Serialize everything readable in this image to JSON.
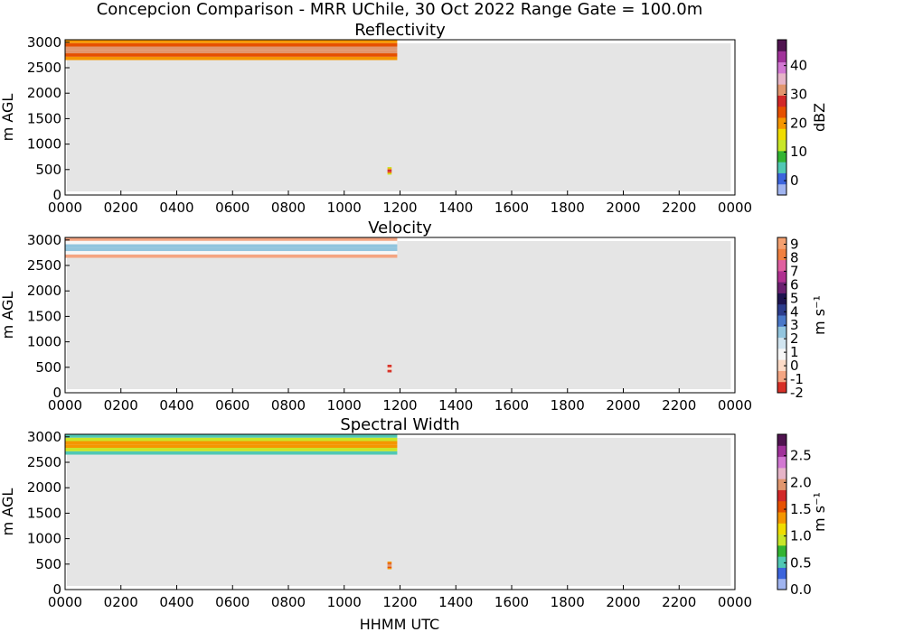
{
  "figure_title": "Concepcion Comparison - MRR UChile, 30 Oct 2022 Range Gate = 100.0m",
  "xlabel": "HHMM UTC",
  "colors": {
    "background": "#e5e5e5",
    "frame": "#000000"
  },
  "chart_data": [
    {
      "type": "heatmap",
      "title": "Reflectivity",
      "ylabel": "m AGL",
      "xlabel": "",
      "x_tick_labels": [
        "0000",
        "0200",
        "0400",
        "0600",
        "0800",
        "1000",
        "1200",
        "1400",
        "1600",
        "1800",
        "2000",
        "2200",
        "0000"
      ],
      "y_ticks": [
        0,
        500,
        1000,
        1500,
        2000,
        2500,
        3000
      ],
      "ylim": [
        0,
        3050
      ],
      "xlim_hours": [
        0,
        24
      ],
      "colorbar": {
        "label": "dBZ",
        "range": [
          -5,
          49
        ],
        "ticks": [
          "0",
          "10",
          "20",
          "30",
          "40"
        ],
        "tick_values": [
          0,
          10,
          20,
          30,
          40
        ],
        "colors": [
          "#a0b4f0",
          "#3c64dc",
          "#50c8b4",
          "#32b432",
          "#c8e628",
          "#f0dc00",
          "#f59600",
          "#e65000",
          "#d22828",
          "#e1966e",
          "#e6b4c8",
          "#d278d2",
          "#a0329a",
          "#501450"
        ]
      },
      "echoes": [
        {
          "start_hour": 0.0,
          "end_hour": 11.9,
          "bottom_m": 2650,
          "top_m": 3050,
          "description_value": 25
        },
        {
          "start_hour": 11.55,
          "end_hour": 11.7,
          "bottom_m": 400,
          "top_m": 550,
          "description_value": 20
        }
      ]
    },
    {
      "type": "heatmap",
      "title": "Velocity",
      "ylabel": "m AGL",
      "xlabel": "",
      "x_tick_labels": [
        "0000",
        "0200",
        "0400",
        "0600",
        "0800",
        "1000",
        "1200",
        "1400",
        "1600",
        "1800",
        "2000",
        "2200",
        "0000"
      ],
      "y_ticks": [
        0,
        500,
        1000,
        1500,
        2000,
        2500,
        3000
      ],
      "ylim": [
        0,
        3050
      ],
      "xlim_hours": [
        0,
        24
      ],
      "colorbar": {
        "label": "m s⁻¹",
        "range": [
          -2,
          9.5
        ],
        "ticks": [
          "-2",
          "-1",
          "0",
          "1",
          "2",
          "3",
          "4",
          "5",
          "6",
          "7",
          "8",
          "9"
        ],
        "tick_values": [
          -2,
          -1,
          0,
          1,
          2,
          3,
          4,
          5,
          6,
          7,
          8,
          9
        ],
        "colors": [
          "#d73027",
          "#f4a582",
          "#fddbc7",
          "#f7f7f7",
          "#d1e5f0",
          "#92c5de",
          "#4a78c8",
          "#2c3c8c",
          "#1e1450",
          "#6a2070",
          "#b03090",
          "#e060a0",
          "#f08040",
          "#f4a070"
        ]
      },
      "echoes": [
        {
          "start_hour": 0.0,
          "end_hour": 11.9,
          "bottom_m": 2650,
          "top_m": 3050,
          "description_value": 1
        },
        {
          "start_hour": 11.55,
          "end_hour": 11.7,
          "bottom_m": 400,
          "top_m": 550,
          "description_value": -1.5
        }
      ]
    },
    {
      "type": "heatmap",
      "title": "Spectral Width",
      "ylabel": "m AGL",
      "xlabel": "HHMM UTC",
      "x_tick_labels": [
        "0000",
        "0200",
        "0400",
        "0600",
        "0800",
        "1000",
        "1200",
        "1400",
        "1600",
        "1800",
        "2000",
        "2200",
        "0000"
      ],
      "y_ticks": [
        0,
        500,
        1000,
        1500,
        2000,
        2500,
        3000
      ],
      "ylim": [
        0,
        3050
      ],
      "xlim_hours": [
        0,
        24
      ],
      "colorbar": {
        "label": "m s⁻¹",
        "range": [
          0,
          2.9
        ],
        "ticks": [
          "0.0",
          "0.5",
          "1.0",
          "1.5",
          "2.0",
          "2.5"
        ],
        "tick_values": [
          0,
          0.5,
          1.0,
          1.5,
          2.0,
          2.5
        ],
        "colors": [
          "#a0b4f0",
          "#3c64dc",
          "#50c8b4",
          "#32b432",
          "#c8e628",
          "#f0dc00",
          "#f59600",
          "#e65000",
          "#d22828",
          "#e1966e",
          "#e6b4c8",
          "#d278d2",
          "#a0329a",
          "#501450"
        ]
      },
      "echoes": [
        {
          "start_hour": 0.0,
          "end_hour": 11.9,
          "bottom_m": 2650,
          "top_m": 3050,
          "description_value": 0.9
        },
        {
          "start_hour": 11.55,
          "end_hour": 11.7,
          "bottom_m": 400,
          "top_m": 550,
          "description_value": 1.6
        }
      ]
    }
  ]
}
